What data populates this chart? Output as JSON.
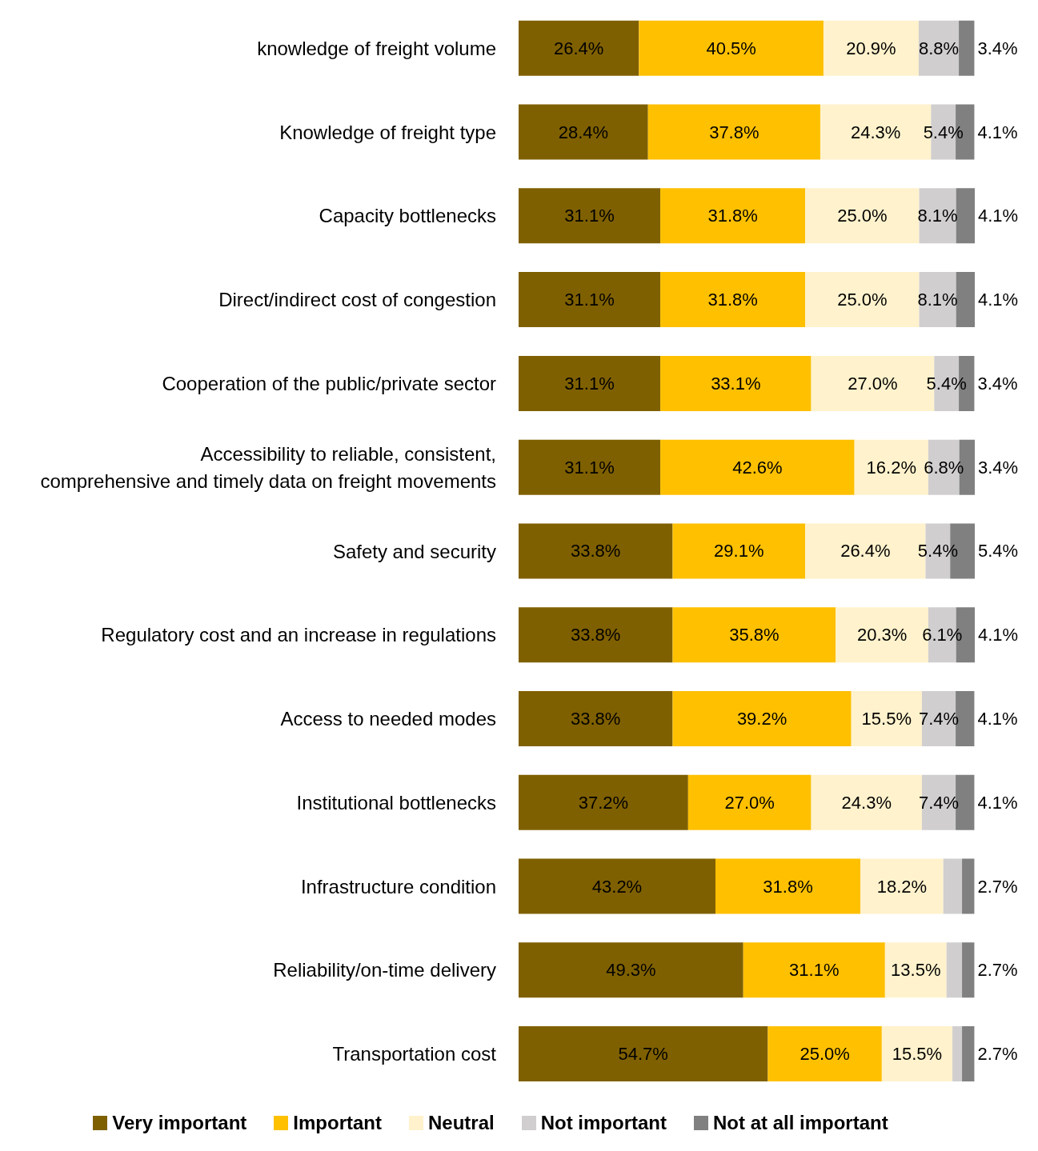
{
  "chart_data": {
    "type": "bar",
    "orientation": "horizontal",
    "stacked": true,
    "legend": "bottom",
    "categories": [
      "knowledge of freight volume",
      "Knowledge of freight type",
      "Capacity bottlenecks",
      "Direct/indirect cost of congestion",
      "Cooperation of the public/private sector",
      "Accessibility to reliable, consistent, comprehensive and timely data on freight movements",
      "Safety and security",
      "Regulatory cost and an increase in regulations",
      "Access to needed modes",
      "Institutional bottlenecks",
      "Infrastructure condition",
      "Reliability/on-time delivery",
      "Transportation cost"
    ],
    "series": [
      {
        "name": "Very important",
        "color": "#7f6000",
        "values": [
          26.4,
          28.4,
          31.1,
          31.1,
          31.1,
          31.1,
          33.8,
          33.8,
          33.8,
          37.2,
          43.2,
          49.3,
          54.7
        ],
        "value_labels": [
          "26.4%",
          "28.4%",
          "31.1%",
          "31.1%",
          "31.1%",
          "31.1%",
          "33.8%",
          "33.8%",
          "33.8%",
          "37.2%",
          "43.2%",
          "49.3%",
          "54.7%"
        ]
      },
      {
        "name": "Important",
        "color": "#ffc000",
        "values": [
          40.5,
          37.8,
          31.8,
          31.8,
          33.1,
          42.6,
          29.1,
          35.8,
          39.2,
          27.0,
          31.8,
          31.1,
          25.0
        ],
        "value_labels": [
          "40.5%",
          "37.8%",
          "31.8%",
          "31.8%",
          "33.1%",
          "42.6%",
          "29.1%",
          "35.8%",
          "39.2%",
          "27.0%",
          "31.8%",
          "31.1%",
          "25.0%"
        ]
      },
      {
        "name": "Neutral",
        "color": "#fff2cc",
        "values": [
          20.9,
          24.3,
          25.0,
          25.0,
          27.0,
          16.2,
          26.4,
          20.3,
          15.5,
          24.3,
          18.2,
          13.5,
          15.5
        ],
        "value_labels": [
          "20.9%",
          "24.3%",
          "25.0%",
          "25.0%",
          "27.0%",
          "16.2%",
          "26.4%",
          "20.3%",
          "15.5%",
          "24.3%",
          "18.2%",
          "13.5%",
          "15.5%"
        ]
      },
      {
        "name": "Not important",
        "color": "#d0cece",
        "values": [
          8.8,
          5.4,
          8.1,
          8.1,
          5.4,
          6.8,
          5.4,
          6.1,
          7.4,
          7.4,
          4.1,
          3.4,
          2.1
        ],
        "value_labels": [
          "8.8%",
          "5.4%",
          "8.1%",
          "8.1%",
          "5.4%",
          "6.8%",
          "5.4%",
          "6.1%",
          "7.4%",
          "7.4%",
          null,
          null,
          null
        ]
      },
      {
        "name": "Not at all important",
        "color": "#808080",
        "values": [
          3.4,
          4.1,
          4.1,
          4.1,
          3.4,
          3.4,
          5.4,
          4.1,
          4.1,
          4.1,
          2.7,
          2.7,
          2.7
        ],
        "value_labels": [
          "3.4%",
          "4.1%",
          "4.1%",
          "4.1%",
          "3.4%",
          "3.4%",
          "5.4%",
          "4.1%",
          "4.1%",
          "4.1%",
          "2.7%",
          "2.7%",
          "2.7%"
        ]
      }
    ]
  }
}
